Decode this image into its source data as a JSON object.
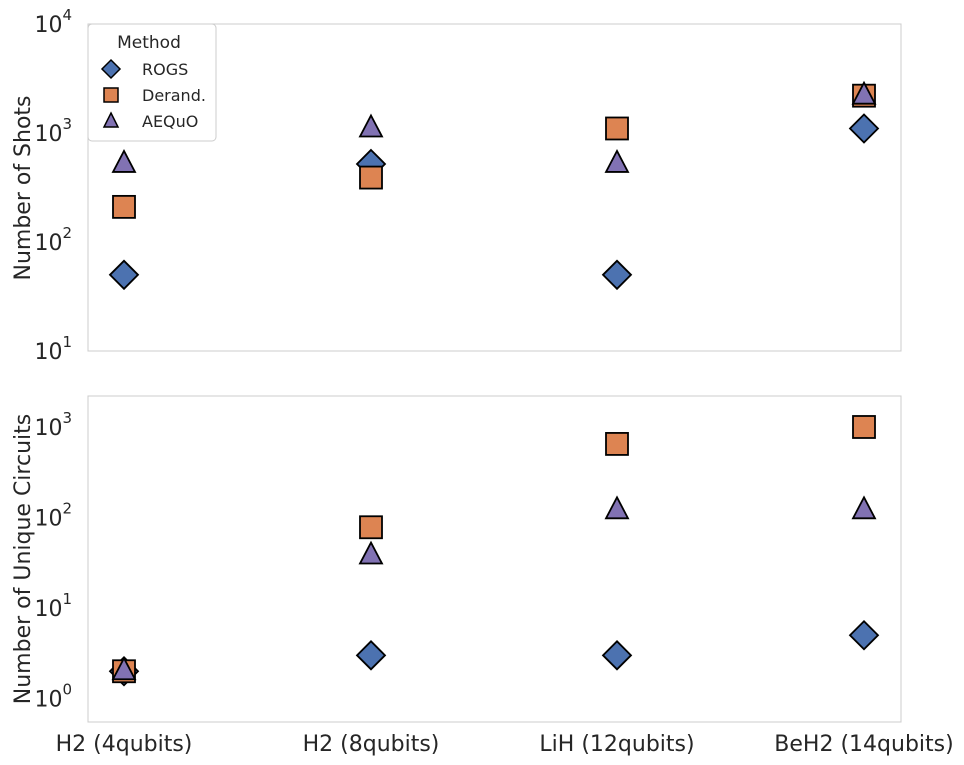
{
  "chart_data": [
    {
      "type": "scatter",
      "ylabel": "Number of Shots",
      "yscale": "log",
      "ylim": [
        10,
        10000
      ],
      "y_ticks": [
        {
          "base": "10",
          "exp": "1"
        },
        {
          "base": "10",
          "exp": "2"
        },
        {
          "base": "10",
          "exp": "3"
        },
        {
          "base": "10",
          "exp": "4"
        }
      ],
      "grid": false,
      "legend": {
        "title": "Method",
        "position": "top-left",
        "entries": [
          "ROGS",
          "Derand.",
          "AEQuO"
        ]
      },
      "categories": [
        "H2 (4qubits)",
        "H2 (8qubits)",
        "LiH (12qubits)",
        "BeH2 (14qubits)"
      ],
      "series": [
        {
          "name": "ROGS",
          "marker": "diamond",
          "color": "#4c72b0",
          "values": [
            50,
            520,
            50,
            1100
          ]
        },
        {
          "name": "Derand.",
          "marker": "square",
          "color": "#dd8452",
          "values": [
            210,
            390,
            1100,
            2200
          ]
        },
        {
          "name": "AEQuO",
          "marker": "triangle",
          "color": "#8172b3",
          "values": [
            520,
            1100,
            520,
            2200
          ]
        }
      ]
    },
    {
      "type": "scatter",
      "ylabel": "Number of Unique Circuits",
      "yscale": "log",
      "ylim": [
        0.55,
        2200
      ],
      "y_ticks": [
        {
          "value": 1,
          "base": "10",
          "exp": "0"
        },
        {
          "value": 10,
          "base": "10",
          "exp": "1"
        },
        {
          "value": 100,
          "base": "10",
          "exp": "2"
        },
        {
          "value": 1000,
          "base": "10",
          "exp": "3"
        }
      ],
      "grid": false,
      "categories": [
        "H2 (4qubits)",
        "H2 (8qubits)",
        "LiH (12qubits)",
        "BeH2 (14qubits)"
      ],
      "series": [
        {
          "name": "ROGS",
          "marker": "diamond",
          "color": "#4c72b0",
          "values": [
            2,
            3,
            3,
            5
          ]
        },
        {
          "name": "Derand.",
          "marker": "square",
          "color": "#dd8452",
          "values": [
            2,
            78,
            650,
            1000
          ]
        },
        {
          "name": "AEQuO",
          "marker": "triangle",
          "color": "#8172b3",
          "values": [
            2,
            38,
            120,
            120
          ]
        }
      ]
    }
  ]
}
